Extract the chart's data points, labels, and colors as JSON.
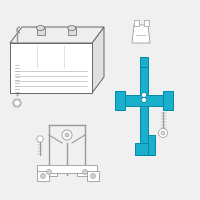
{
  "background_color": "#f0f0f0",
  "highlight_color": "#1ab0cc",
  "outline_color": "#999999",
  "dark_outline": "#666666",
  "fig_width": 2.0,
  "fig_height": 2.0,
  "dpi": 100
}
